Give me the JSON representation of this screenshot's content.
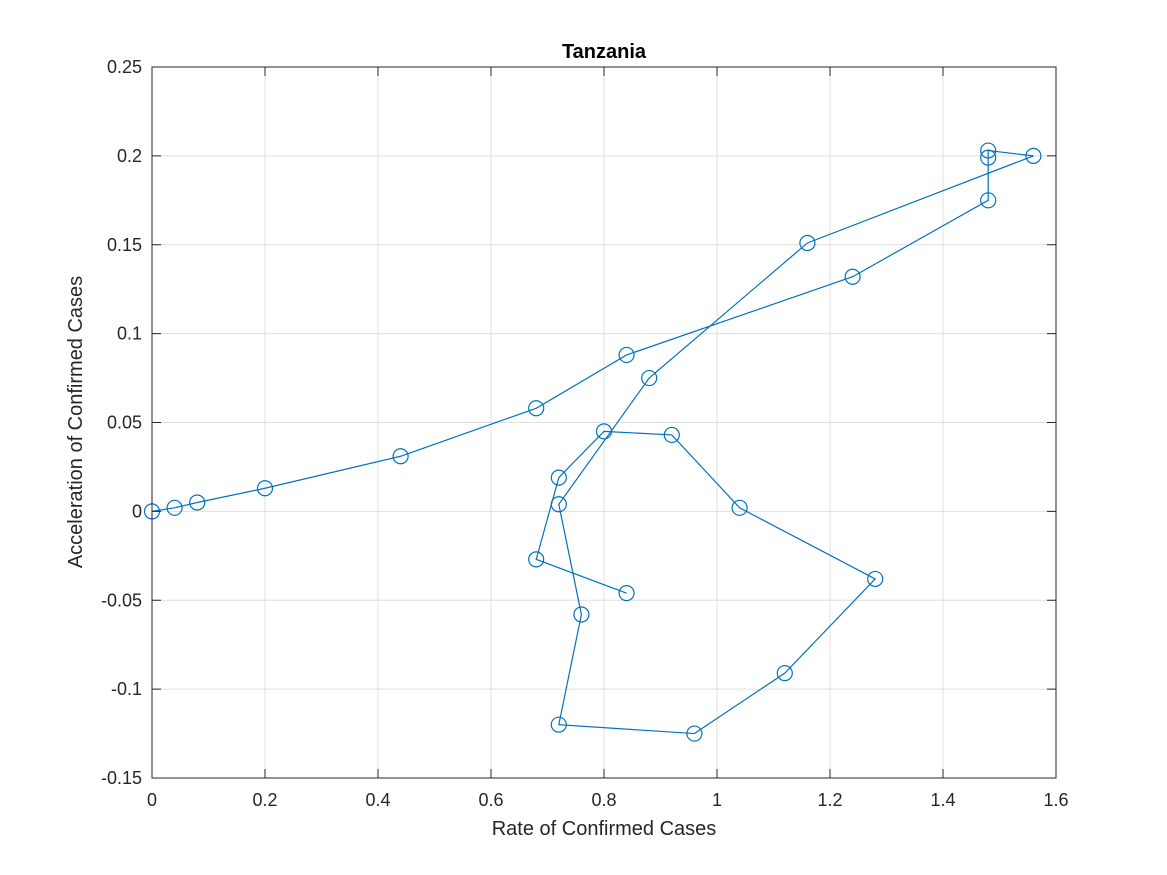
{
  "chart_data": {
    "type": "line",
    "title": "Tanzania",
    "xlabel": "Rate of Confirmed Cases",
    "ylabel": "Acceleration of Confirmed Cases",
    "xlim": [
      0,
      1.6
    ],
    "ylim": [
      -0.15,
      0.25
    ],
    "xticks": [
      0,
      0.2,
      0.4,
      0.6,
      0.8,
      1,
      1.2,
      1.4,
      1.6
    ],
    "yticks": [
      -0.15,
      -0.1,
      -0.05,
      0,
      0.05,
      0.1,
      0.15,
      0.2,
      0.25
    ],
    "xtick_labels": [
      "0",
      "0.2",
      "0.4",
      "0.6",
      "0.8",
      "1",
      "1.2",
      "1.4",
      "1.6"
    ],
    "ytick_labels": [
      "-0.15",
      "-0.1",
      "-0.05",
      "0",
      "0.05",
      "0.1",
      "0.15",
      "0.2",
      "0.25"
    ],
    "grid": true,
    "marker": "circle",
    "line_color": "#0072bd",
    "series": [
      {
        "x": [
          0,
          0.04,
          0.08,
          0.2,
          0.44,
          0.68,
          0.84,
          1.24,
          1.48,
          1.48,
          1.48,
          1.56,
          1.16,
          0.88,
          0.72,
          0.76,
          0.72,
          0.96,
          1.12,
          1.28,
          1.04,
          0.92,
          0.8,
          0.72,
          0.68,
          0.84
        ],
        "y": [
          0,
          0.002,
          0.005,
          0.013,
          0.031,
          0.058,
          0.088,
          0.132,
          0.175,
          0.199,
          0.203,
          0.2,
          0.151,
          0.075,
          0.004,
          -0.058,
          -0.12,
          -0.125,
          -0.091,
          -0.038,
          0.002,
          0.043,
          0.045,
          0.019,
          -0.027,
          -0.046
        ]
      }
    ]
  }
}
